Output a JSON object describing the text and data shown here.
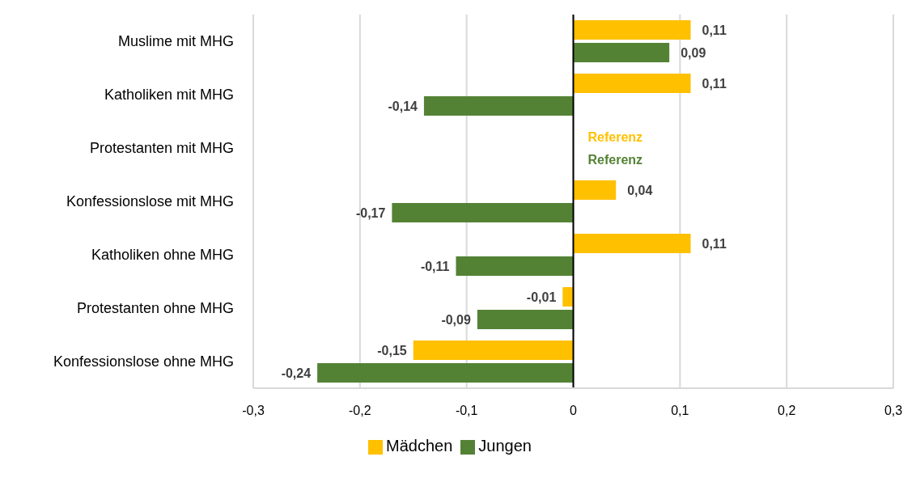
{
  "chart_data": {
    "type": "bar",
    "orientation": "horizontal",
    "categories": [
      "Muslime mit MHG",
      "Katholiken mit MHG",
      "Protestanten mit MHG",
      "Konfessionslose mit MHG",
      "Katholiken ohne MHG",
      "Protestanten ohne MHG",
      "Konfessionslose ohne MHG"
    ],
    "series": [
      {
        "name": "Mädchen",
        "color": "#ffc000",
        "values": [
          0.11,
          0.11,
          null,
          0.04,
          0.11,
          -0.01,
          -0.15
        ],
        "value_labels": [
          "0,11",
          "0,11",
          "Referenz",
          "0,04",
          "0,11",
          "-0,01",
          "-0,15"
        ]
      },
      {
        "name": "Jungen",
        "color": "#548235",
        "values": [
          0.09,
          -0.14,
          null,
          -0.17,
          -0.11,
          -0.09,
          -0.24
        ],
        "value_labels": [
          "0,09",
          "-0,14",
          "Referenz",
          "-0,17",
          "-0,11",
          "-0,09",
          "-0,24"
        ]
      }
    ],
    "xlim": [
      -0.3,
      0.3
    ],
    "xticks": [
      {
        "value": -0.3,
        "label": "-0,3"
      },
      {
        "value": -0.2,
        "label": "-0,2"
      },
      {
        "value": -0.1,
        "label": "-0,1"
      },
      {
        "value": 0,
        "label": "0"
      },
      {
        "value": 0.1,
        "label": "0,1"
      },
      {
        "value": 0.2,
        "label": "0,2"
      },
      {
        "value": 0.3,
        "label": "0,3"
      }
    ],
    "ref_lines": [
      {
        "axis": "x",
        "value": 0,
        "color": "#000000"
      }
    ],
    "grid": "x",
    "legend": "bottom"
  }
}
